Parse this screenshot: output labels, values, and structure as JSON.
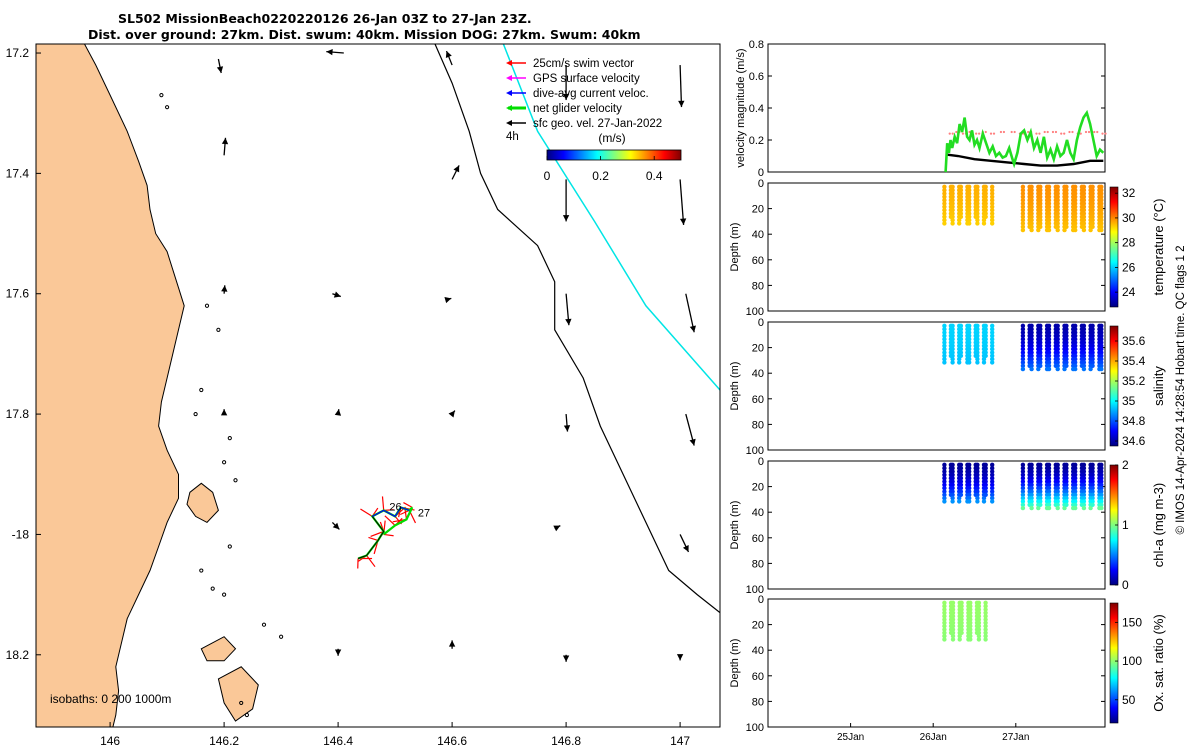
{
  "title": {
    "line1": "SL502 MissionBeach0220220126 26-Jan 03Z to 27-Jan 23Z.",
    "line2": "Dist. over ground: 27km. Dist. swum: 40km. Mission DOG: 27km. Swum: 40km"
  },
  "credit": "© IMOS 14-Apr-2024 14:28:54 Hobart time. QC flags 1  2",
  "colors": {
    "land": "#FAC898",
    "track_cyan": "#00E5E5",
    "isobath": "#000000",
    "swim_vector": "#FF0000",
    "gps_velocity": "#FF00FF",
    "current_velocity": "#0000FF",
    "net_velocity": "#00DD00",
    "geo_velocity": "#000000",
    "velocity_line": "#22DD22",
    "velocity_black": "#000000",
    "dots_red": "#FF7F7F",
    "colormap": [
      "#00007F",
      "#0000FF",
      "#007FFF",
      "#00FFFF",
      "#7FFF7F",
      "#FFFF00",
      "#FF7F00",
      "#FF0000",
      "#7F0000"
    ]
  },
  "chart_data": [
    {
      "type": "map",
      "name": "glider-map",
      "xlim": [
        145.87,
        147.07
      ],
      "ylim": [
        -18.32,
        -17.185
      ],
      "x_ticks": [
        146,
        146.2,
        146.4,
        146.6,
        146.8,
        147
      ],
      "x_tick_labels": [
        "146",
        "146.2",
        "146.4",
        "146.6",
        "146.8",
        "147"
      ],
      "y_ticks": [
        -17.2,
        -17.4,
        -17.6,
        -17.8,
        -18,
        -18.2
      ],
      "y_tick_labels": [
        "17.2",
        "17.4",
        "17.6",
        "17.8",
        "-18",
        "18.2"
      ],
      "legend": {
        "items": [
          {
            "label": "25cm/s swim vector",
            "color": "#FF0000"
          },
          {
            "label": "GPS surface velocity",
            "color": "#FF00FF"
          },
          {
            "label": "dive-avg current veloc.",
            "color": "#0000FF"
          },
          {
            "label": "net glider velocity",
            "color": "#00DD00"
          },
          {
            "label": "sfc geo. vel. 27-Jan-2022",
            "color": "#000000"
          }
        ],
        "time_label": "4h"
      },
      "colorbar": {
        "label": "(m/s)",
        "range": [
          0,
          0.5
        ],
        "ticks": [
          0,
          0.2,
          0.4
        ],
        "tick_labels": [
          "0",
          "0.2",
          "0.4"
        ]
      },
      "isobaths_label": "isobaths: 0   200  1000m",
      "day_labels": [
        {
          "text": "26",
          "lon": 146.49,
          "lat": -17.96
        },
        {
          "text": "27",
          "lon": 146.54,
          "lat": -17.97
        }
      ],
      "coastline": [
        [
          145.87,
          -17.185
        ],
        [
          145.955,
          -17.185
        ],
        [
          145.975,
          -17.22
        ],
        [
          146.0,
          -17.27
        ],
        [
          146.03,
          -17.33
        ],
        [
          146.05,
          -17.38
        ],
        [
          146.065,
          -17.42
        ],
        [
          146.07,
          -17.46
        ],
        [
          146.08,
          -17.5
        ],
        [
          146.1,
          -17.53
        ],
        [
          146.11,
          -17.56
        ],
        [
          146.12,
          -17.59
        ],
        [
          146.13,
          -17.62
        ],
        [
          146.12,
          -17.66
        ],
        [
          146.11,
          -17.7
        ],
        [
          146.1,
          -17.74
        ],
        [
          146.09,
          -17.78
        ],
        [
          146.085,
          -17.82
        ],
        [
          146.1,
          -17.86
        ],
        [
          146.12,
          -17.9
        ],
        [
          146.12,
          -17.94
        ],
        [
          146.1,
          -17.98
        ],
        [
          146.085,
          -18.02
        ],
        [
          146.07,
          -18.06
        ],
        [
          146.05,
          -18.1
        ],
        [
          146.03,
          -18.14
        ],
        [
          146.02,
          -18.18
        ],
        [
          146.01,
          -18.22
        ],
        [
          146.015,
          -18.26
        ],
        [
          146.01,
          -18.3
        ],
        [
          146.005,
          -18.32
        ],
        [
          145.87,
          -18.32
        ]
      ],
      "island_polygons": [
        [
          [
            146.14,
            -17.93
          ],
          [
            146.16,
            -17.915
          ],
          [
            146.18,
            -17.93
          ],
          [
            146.19,
            -17.96
          ],
          [
            146.17,
            -17.98
          ],
          [
            146.15,
            -17.97
          ],
          [
            146.135,
            -17.95
          ]
        ],
        [
          [
            146.16,
            -18.19
          ],
          [
            146.2,
            -18.17
          ],
          [
            146.22,
            -18.19
          ],
          [
            146.2,
            -18.21
          ],
          [
            146.17,
            -18.21
          ]
        ],
        [
          [
            146.19,
            -18.24
          ],
          [
            146.23,
            -18.22
          ],
          [
            146.26,
            -18.25
          ],
          [
            146.25,
            -18.29
          ],
          [
            146.22,
            -18.31
          ],
          [
            146.2,
            -18.28
          ]
        ]
      ],
      "small_islands": [
        [
          146.09,
          -17.27
        ],
        [
          146.1,
          -17.29
        ],
        [
          146.17,
          -17.62
        ],
        [
          146.19,
          -17.66
        ],
        [
          146.16,
          -17.76
        ],
        [
          146.15,
          -17.8
        ],
        [
          146.21,
          -17.84
        ],
        [
          146.2,
          -17.88
        ],
        [
          146.22,
          -17.91
        ],
        [
          146.16,
          -18.06
        ],
        [
          146.21,
          -18.02
        ],
        [
          146.18,
          -18.09
        ],
        [
          146.2,
          -18.1
        ],
        [
          146.27,
          -18.15
        ],
        [
          146.3,
          -18.17
        ],
        [
          146.23,
          -18.28
        ],
        [
          146.24,
          -18.3
        ]
      ],
      "isobath_1000m": [
        [
          146.57,
          -17.185
        ],
        [
          146.6,
          -17.25
        ],
        [
          146.63,
          -17.33
        ],
        [
          146.65,
          -17.4
        ],
        [
          146.68,
          -17.46
        ],
        [
          146.75,
          -17.52
        ],
        [
          146.78,
          -17.58
        ],
        [
          146.78,
          -17.66
        ],
        [
          146.83,
          -17.74
        ],
        [
          146.86,
          -17.82
        ],
        [
          146.9,
          -17.9
        ],
        [
          146.94,
          -17.98
        ],
        [
          146.98,
          -18.06
        ],
        [
          147.03,
          -18.1
        ],
        [
          147.07,
          -18.13
        ]
      ],
      "cyan_track": [
        [
          146.69,
          -17.185
        ],
        [
          146.75,
          -17.33
        ],
        [
          146.85,
          -17.48
        ],
        [
          146.94,
          -17.62
        ],
        [
          147.07,
          -17.76
        ]
      ],
      "geo_vectors": [
        {
          "lon": 146.19,
          "lat": -17.21,
          "u": 0.004,
          "v": -0.02
        },
        {
          "lon": 146.41,
          "lat": -17.2,
          "u": -0.025,
          "v": 0.002
        },
        {
          "lon": 146.6,
          "lat": -17.22,
          "u": -0.008,
          "v": 0.02
        },
        {
          "lon": 146.8,
          "lat": -17.22,
          "u": 0.0,
          "v": -0.05
        },
        {
          "lon": 147.0,
          "lat": -17.22,
          "u": 0.002,
          "v": -0.06
        },
        {
          "lon": 146.2,
          "lat": -17.37,
          "u": 0.002,
          "v": 0.025
        },
        {
          "lon": 146.6,
          "lat": -17.41,
          "u": 0.01,
          "v": 0.02
        },
        {
          "lon": 146.8,
          "lat": -17.41,
          "u": 0.0,
          "v": -0.06
        },
        {
          "lon": 147.0,
          "lat": -17.41,
          "u": 0.005,
          "v": -0.065
        },
        {
          "lon": 146.2,
          "lat": -17.6,
          "u": 0.001,
          "v": 0.012
        },
        {
          "lon": 146.39,
          "lat": -17.6,
          "u": 0.012,
          "v": -0.004
        },
        {
          "lon": 146.59,
          "lat": -17.61,
          "u": 0.007,
          "v": 0.002
        },
        {
          "lon": 146.8,
          "lat": -17.6,
          "u": 0.004,
          "v": -0.045
        },
        {
          "lon": 147.01,
          "lat": -17.6,
          "u": 0.012,
          "v": -0.055
        },
        {
          "lon": 146.2,
          "lat": -17.8,
          "u": 0.0,
          "v": 0.007
        },
        {
          "lon": 146.4,
          "lat": -17.8,
          "u": 0.001,
          "v": 0.007
        },
        {
          "lon": 146.6,
          "lat": -17.8,
          "u": 0.004,
          "v": 0.005
        },
        {
          "lon": 146.8,
          "lat": -17.8,
          "u": 0.002,
          "v": -0.025
        },
        {
          "lon": 147.01,
          "lat": -17.8,
          "u": 0.012,
          "v": -0.045
        },
        {
          "lon": 146.39,
          "lat": -17.98,
          "u": 0.01,
          "v": -0.01
        },
        {
          "lon": 146.78,
          "lat": -17.99,
          "u": 0.008,
          "v": 0.004
        },
        {
          "lon": 147.0,
          "lat": -18.0,
          "u": 0.012,
          "v": -0.025
        },
        {
          "lon": 146.4,
          "lat": -18.19,
          "u": 0.0,
          "v": -0.01
        },
        {
          "lon": 146.6,
          "lat": -18.19,
          "u": 0.0,
          "v": 0.012
        },
        {
          "lon": 146.8,
          "lat": -18.2,
          "u": 0.0,
          "v": -0.01
        },
        {
          "lon": 147.0,
          "lat": -18.2,
          "u": 0.0,
          "v": -0.008
        }
      ],
      "glider_track": [
        [
          146.435,
          -18.04
        ],
        [
          146.45,
          -18.035
        ],
        [
          146.47,
          -18.01
        ],
        [
          146.48,
          -17.995
        ],
        [
          146.46,
          -17.97
        ],
        [
          146.48,
          -17.96
        ],
        [
          146.5,
          -17.97
        ],
        [
          146.51,
          -17.955
        ],
        [
          146.525,
          -17.96
        ],
        [
          146.53,
          -17.955
        ],
        [
          146.52,
          -17.975
        ],
        [
          146.5,
          -17.985
        ],
        [
          146.48,
          -18.0
        ]
      ]
    },
    {
      "type": "line",
      "name": "velocity-magnitude",
      "ylabel": "velocity magnitude (m/s)",
      "ylim": [
        0,
        0.8
      ],
      "y_ticks": [
        0,
        0.2,
        0.4,
        0.6,
        0.8
      ],
      "xlim": [
        24.0,
        28.08
      ],
      "series": [
        {
          "name": "net glider velocity",
          "color": "#22DD22",
          "x": [
            26.15,
            26.17,
            26.19,
            26.21,
            26.23,
            26.26,
            26.29,
            26.32,
            26.35,
            26.38,
            26.41,
            26.44,
            26.47,
            26.5,
            26.53,
            26.56,
            26.6,
            26.64,
            26.68,
            26.72,
            26.76,
            26.8,
            26.84,
            26.88,
            26.92,
            26.96,
            26.98,
            27.02,
            27.06,
            27.1,
            27.14,
            27.18,
            27.22,
            27.26,
            27.3,
            27.34,
            27.38,
            27.42,
            27.46,
            27.5,
            27.54,
            27.58,
            27.62,
            27.66,
            27.7,
            27.74,
            27.78,
            27.82,
            27.86,
            27.9,
            27.94,
            27.98,
            28.02,
            28.06
          ],
          "y": [
            0.0,
            0.18,
            0.12,
            0.2,
            0.15,
            0.22,
            0.18,
            0.3,
            0.25,
            0.34,
            0.22,
            0.2,
            0.26,
            0.17,
            0.2,
            0.15,
            0.24,
            0.18,
            0.12,
            0.16,
            0.1,
            0.12,
            0.09,
            0.1,
            0.15,
            0.08,
            0.05,
            0.12,
            0.24,
            0.26,
            0.2,
            0.25,
            0.15,
            0.2,
            0.12,
            0.22,
            0.09,
            0.14,
            0.08,
            0.16,
            0.1,
            0.12,
            0.2,
            0.12,
            0.08,
            0.2,
            0.28,
            0.34,
            0.37,
            0.3,
            0.2,
            0.1,
            0.14,
            0.12
          ]
        },
        {
          "name": "sfc geo. vel.",
          "color": "#000000",
          "x": [
            26.15,
            26.3,
            26.5,
            26.7,
            26.9,
            27.1,
            27.3,
            27.5,
            27.7,
            27.9,
            28.06
          ],
          "y": [
            0.11,
            0.1,
            0.08,
            0.07,
            0.06,
            0.05,
            0.04,
            0.04,
            0.05,
            0.07,
            0.07
          ]
        },
        {
          "name": "swim vector",
          "color": "#FF7F7F",
          "x": [
            26.2,
            26.28,
            26.36,
            26.44,
            26.52,
            26.6,
            26.7,
            26.82,
            26.95,
            27.05,
            27.15,
            27.25,
            27.35,
            27.45,
            27.55,
            27.65,
            27.75,
            27.85,
            27.95,
            28.05
          ],
          "y": [
            0.24,
            0.25,
            0.24,
            0.25,
            0.24,
            0.25,
            0.24,
            0.25,
            0.25,
            0.24,
            0.25,
            0.24,
            0.25,
            0.25,
            0.24,
            0.25,
            0.24,
            0.25,
            0.25,
            0.24
          ]
        }
      ]
    },
    {
      "type": "scatter",
      "name": "temperature-profile",
      "ylabel": "Depth (m)",
      "ylim": [
        100,
        0
      ],
      "y_ticks": [
        0,
        20,
        40,
        60,
        80,
        100
      ],
      "xlim": [
        24.0,
        28.08
      ],
      "colorbar": {
        "label": "temperature (°C)",
        "range": [
          22.8,
          32.5
        ],
        "ticks": [
          24,
          26,
          28,
          30,
          32
        ]
      },
      "segments": [
        {
          "x_range": [
            26.15,
            26.7
          ],
          "depth_range": [
            3,
            32
          ],
          "value_top": 29.6,
          "value_bottom": 29.3
        },
        {
          "x_range": [
            27.1,
            28.05
          ],
          "depth_range": [
            3,
            38
          ],
          "value_top": 29.9,
          "value_bottom": 29.4
        }
      ]
    },
    {
      "type": "scatter",
      "name": "salinity-profile",
      "ylabel": "Depth (m)",
      "ylim": [
        100,
        0
      ],
      "y_ticks": [
        0,
        20,
        40,
        60,
        80,
        100
      ],
      "xlim": [
        24.0,
        28.08
      ],
      "colorbar": {
        "label": "salinity",
        "range": [
          34.55,
          35.75
        ],
        "ticks": [
          34.6,
          34.8,
          35,
          35.2,
          35.4,
          35.6
        ]
      },
      "segments": [
        {
          "x_range": [
            26.15,
            26.7
          ],
          "depth_range": [
            3,
            32
          ],
          "value_top": 34.95,
          "value_bottom": 34.93
        },
        {
          "x_range": [
            27.1,
            28.05
          ],
          "depth_range": [
            3,
            38
          ],
          "value_top": 34.6,
          "value_bottom": 34.85
        }
      ]
    },
    {
      "type": "scatter",
      "name": "chla-profile",
      "ylabel": "Depth (m)",
      "ylim": [
        100,
        0
      ],
      "y_ticks": [
        0,
        20,
        40,
        60,
        80,
        100
      ],
      "xlim": [
        24.0,
        28.08
      ],
      "colorbar": {
        "label": "chl-a (mg m-3)",
        "range": [
          0,
          2
        ],
        "ticks": [
          0,
          1,
          2
        ]
      },
      "segments": [
        {
          "x_range": [
            26.15,
            26.7
          ],
          "depth_range": [
            3,
            32
          ],
          "value_top": 0.05,
          "value_bottom": 0.55
        },
        {
          "x_range": [
            27.1,
            28.05
          ],
          "depth_range": [
            3,
            38
          ],
          "value_top": 0.05,
          "value_bottom": 1.0
        }
      ]
    },
    {
      "type": "scatter",
      "name": "oxygen-profile",
      "ylabel": "Depth (m)",
      "ylim": [
        100,
        0
      ],
      "y_ticks": [
        0,
        20,
        40,
        60,
        80,
        100
      ],
      "xlim": [
        24.0,
        28.08
      ],
      "x_ticks": [
        25,
        26,
        27
      ],
      "x_tick_labels": [
        "25Jan",
        "26Jan",
        "27Jan"
      ],
      "colorbar": {
        "label": "Ox. sat. ratio (%)",
        "range": [
          20,
          175
        ],
        "ticks": [
          50,
          100,
          150
        ]
      },
      "segments": [
        {
          "x_range": [
            26.15,
            26.62
          ],
          "depth_range": [
            3,
            32
          ],
          "value_top": 101,
          "value_bottom": 99
        }
      ]
    }
  ]
}
